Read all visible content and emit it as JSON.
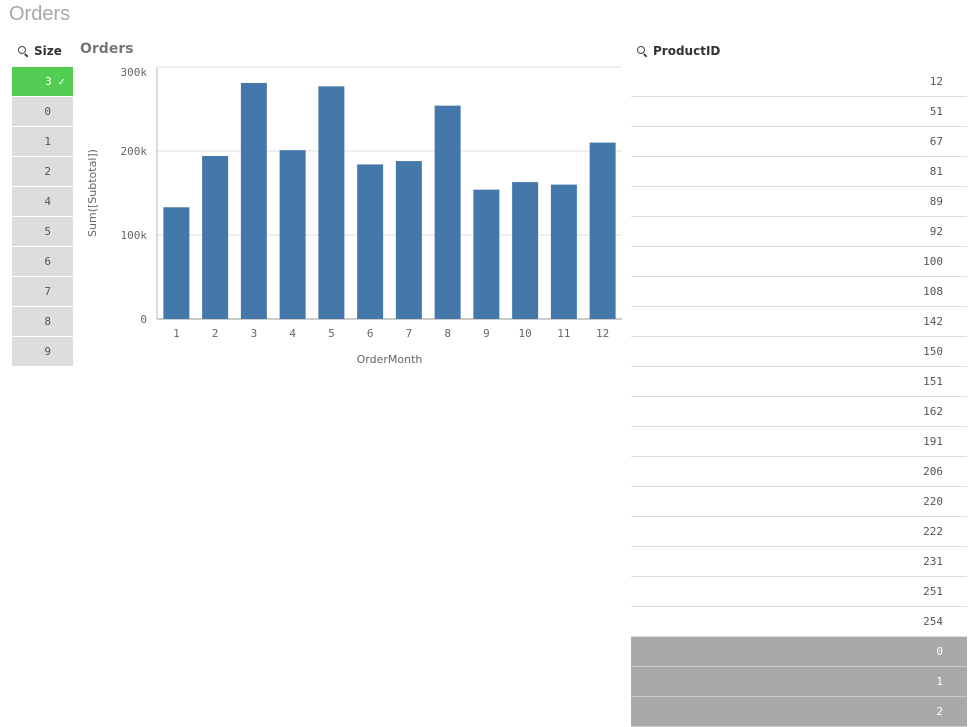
{
  "sheet": {
    "title": "Orders"
  },
  "size_filter": {
    "title": "Size",
    "selected": "3",
    "items": [
      "0",
      "1",
      "2",
      "4",
      "5",
      "6",
      "7",
      "8",
      "9"
    ]
  },
  "chart": {
    "title": "Orders"
  },
  "chart_data": {
    "type": "bar",
    "title": "Orders",
    "xlabel": "OrderMonth",
    "ylabel": "Sum([Subtotal])",
    "categories": [
      "1",
      "2",
      "3",
      "4",
      "5",
      "6",
      "7",
      "8",
      "9",
      "10",
      "11",
      "12"
    ],
    "values": [
      133000,
      194000,
      281000,
      201000,
      277000,
      184000,
      188000,
      254000,
      154000,
      163000,
      160000,
      210000
    ],
    "ylim": [
      0,
      300000
    ],
    "yticks": [
      {
        "v": 0,
        "label": "0"
      },
      {
        "v": 100000,
        "label": "100k"
      },
      {
        "v": 200000,
        "label": "200k"
      },
      {
        "v": 300000,
        "label": "300k"
      }
    ],
    "grid": true,
    "color": "#4477aa"
  },
  "product_filter": {
    "title": "ProductID",
    "items": [
      "12",
      "51",
      "67",
      "81",
      "89",
      "92",
      "100",
      "108",
      "142",
      "150",
      "151",
      "162",
      "191",
      "206",
      "220",
      "222",
      "231",
      "251",
      "254"
    ],
    "excluded": [
      "0",
      "1",
      "2"
    ]
  }
}
